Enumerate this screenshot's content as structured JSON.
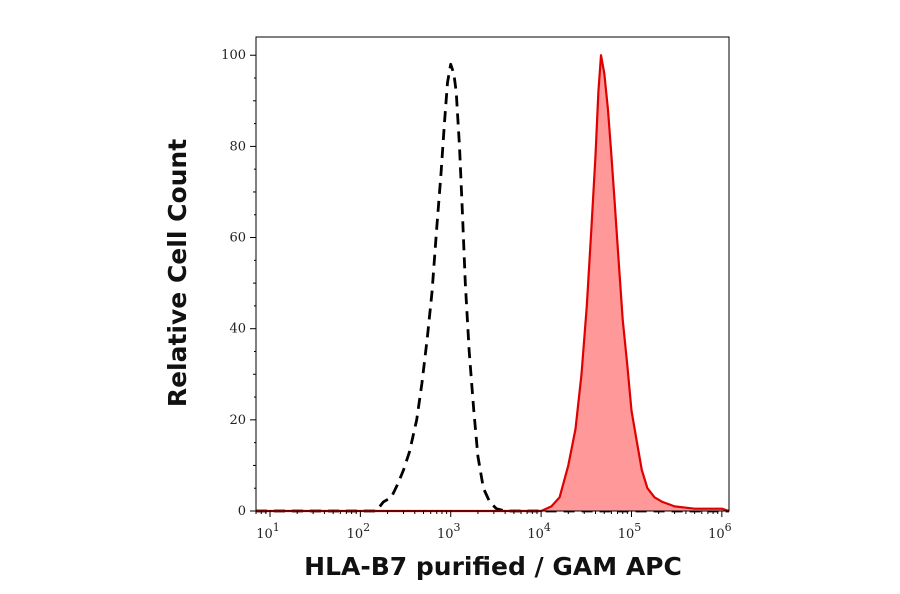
{
  "chart_data": {
    "type": "area",
    "title": "",
    "xlabel": "HLA-B7 purified / GAM APC",
    "ylabel": "Relative Cell Count",
    "x_scale": "log",
    "xlim": [
      7,
      1200000
    ],
    "ylim": [
      0,
      104
    ],
    "x_ticks": [
      {
        "value": 10,
        "base": "10",
        "exp": "1"
      },
      {
        "value": 100,
        "base": "10",
        "exp": "2"
      },
      {
        "value": 1000,
        "base": "10",
        "exp": "3"
      },
      {
        "value": 10000,
        "base": "10",
        "exp": "4"
      },
      {
        "value": 100000,
        "base": "10",
        "exp": "5"
      },
      {
        "value": 1000000,
        "base": "10",
        "exp": "6"
      }
    ],
    "y_ticks": [
      0,
      20,
      40,
      60,
      80,
      100
    ],
    "grid": false,
    "series": [
      {
        "style": "dashed-line",
        "color": "#000000",
        "points": [
          [
            7,
            0
          ],
          [
            150,
            0
          ],
          [
            180,
            2
          ],
          [
            220,
            3
          ],
          [
            260,
            6
          ],
          [
            300,
            9
          ],
          [
            350,
            13
          ],
          [
            420,
            20
          ],
          [
            480,
            28
          ],
          [
            550,
            38
          ],
          [
            620,
            48
          ],
          [
            700,
            62
          ],
          [
            780,
            74
          ],
          [
            850,
            85
          ],
          [
            920,
            94
          ],
          [
            1000,
            98
          ],
          [
            1080,
            96
          ],
          [
            1150,
            92
          ],
          [
            1250,
            80
          ],
          [
            1350,
            65
          ],
          [
            1450,
            50
          ],
          [
            1600,
            35
          ],
          [
            1800,
            22
          ],
          [
            2000,
            12
          ],
          [
            2300,
            5
          ],
          [
            2700,
            2
          ],
          [
            3200,
            0.5
          ],
          [
            4000,
            0
          ],
          [
            1200000,
            0
          ]
        ]
      },
      {
        "style": "filled",
        "color": "#e00000",
        "fill": "#ff9999",
        "points": [
          [
            7,
            0
          ],
          [
            10000,
            0
          ],
          [
            13000,
            1
          ],
          [
            16000,
            3
          ],
          [
            20000,
            10
          ],
          [
            24000,
            18
          ],
          [
            28000,
            30
          ],
          [
            32000,
            45
          ],
          [
            36000,
            62
          ],
          [
            40000,
            78
          ],
          [
            43000,
            92
          ],
          [
            46000,
            100
          ],
          [
            50000,
            96
          ],
          [
            55000,
            88
          ],
          [
            60000,
            78
          ],
          [
            65000,
            68
          ],
          [
            72000,
            55
          ],
          [
            80000,
            42
          ],
          [
            90000,
            32
          ],
          [
            100000,
            22
          ],
          [
            115000,
            15
          ],
          [
            130000,
            9
          ],
          [
            150000,
            5
          ],
          [
            180000,
            3
          ],
          [
            220000,
            2
          ],
          [
            300000,
            1
          ],
          [
            500000,
            0.5
          ],
          [
            1000000,
            0.5
          ],
          [
            1200000,
            0
          ]
        ]
      }
    ]
  }
}
